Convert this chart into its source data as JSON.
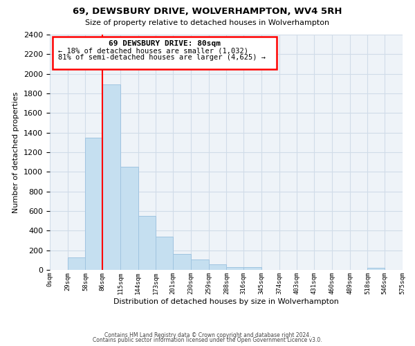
{
  "title": "69, DEWSBURY DRIVE, WOLVERHAMPTON, WV4 5RH",
  "subtitle": "Size of property relative to detached houses in Wolverhampton",
  "xlabel": "Distribution of detached houses by size in Wolverhampton",
  "ylabel": "Number of detached properties",
  "bar_edges": [
    0,
    29,
    58,
    86,
    115,
    144,
    173,
    201,
    230,
    259,
    288,
    316,
    345,
    374,
    403,
    431,
    460,
    489,
    518,
    546,
    575
  ],
  "bar_heights": [
    0,
    125,
    1350,
    1890,
    1050,
    550,
    340,
    160,
    105,
    60,
    25,
    25,
    0,
    0,
    0,
    0,
    0,
    0,
    18,
    0,
    18
  ],
  "bar_color": "#c5dff0",
  "bar_edgecolor": "#a0c4e0",
  "vline_x": 86,
  "vline_color": "red",
  "annotation_title": "69 DEWSBURY DRIVE: 80sqm",
  "annotation_line1": "← 18% of detached houses are smaller (1,032)",
  "annotation_line2": "81% of semi-detached houses are larger (4,625) →",
  "annotation_box_edgecolor": "red",
  "ylim": [
    0,
    2400
  ],
  "xlim": [
    0,
    575
  ],
  "tick_labels": [
    "0sqm",
    "29sqm",
    "58sqm",
    "86sqm",
    "115sqm",
    "144sqm",
    "173sqm",
    "201sqm",
    "230sqm",
    "259sqm",
    "288sqm",
    "316sqm",
    "345sqm",
    "374sqm",
    "403sqm",
    "431sqm",
    "460sqm",
    "489sqm",
    "518sqm",
    "546sqm",
    "575sqm"
  ],
  "tick_positions": [
    0,
    29,
    58,
    86,
    115,
    144,
    173,
    201,
    230,
    259,
    288,
    316,
    345,
    374,
    403,
    431,
    460,
    489,
    518,
    546,
    575
  ],
  "yticks": [
    0,
    200,
    400,
    600,
    800,
    1000,
    1200,
    1400,
    1600,
    1800,
    2000,
    2200,
    2400
  ],
  "footer1": "Contains HM Land Registry data © Crown copyright and database right 2024.",
  "footer2": "Contains public sector information licensed under the Open Government Licence v3.0.",
  "bg_color": "#ffffff",
  "grid_color": "#d0dce8"
}
